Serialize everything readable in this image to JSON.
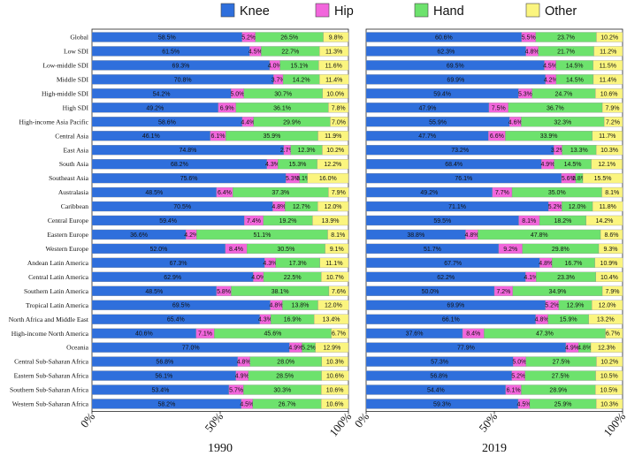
{
  "chart_data": {
    "type": "bar",
    "orientation": "horizontal",
    "stacked": "percent",
    "legend": {
      "placement": "top-center",
      "entries": [
        {
          "name": "Knee",
          "color": "#2f6fdc"
        },
        {
          "name": "Hip",
          "color": "#f266dc"
        },
        {
          "name": "Hand",
          "color": "#6de26d"
        },
        {
          "name": "Other",
          "color": "#fbf57f"
        }
      ]
    },
    "categories": [
      "Global",
      "Low SDI",
      "Low-middle SDI",
      "Middle SDI",
      "High-middle SDI",
      "High SDI",
      "High-income Asia Pacific",
      "Central Asia",
      "East Asia",
      "South Asia",
      "Southeast Asia",
      "Australasia",
      "Caribbean",
      "Central Europe",
      "Eastern Europe",
      "Western Europe",
      "Andean Latin America",
      "Central Latin America",
      "Southern Latin America",
      "Tropical Latin America",
      "North Africa and Middle East",
      "High-income North America",
      "Oceania",
      "Central Sub-Saharan Africa",
      "Eastern Sub-Saharan Africa",
      "Southern Sub-Saharan Africa",
      "Western Sub-Saharan Africa"
    ],
    "xlim": [
      0,
      100
    ],
    "xticks": [
      "0%",
      "50%",
      "100%"
    ],
    "panels": [
      {
        "title": "1990",
        "series": [
          {
            "name": "Knee",
            "values": [
              58.5,
              61.5,
              69.3,
              70.8,
              54.2,
              49.2,
              58.6,
              46.1,
              74.8,
              68.2,
              75.6,
              48.5,
              70.5,
              59.4,
              36.6,
              52.0,
              67.3,
              62.9,
              48.5,
              69.5,
              65.4,
              40.6,
              77.0,
              56.8,
              56.1,
              53.4,
              58.2
            ]
          },
          {
            "name": "Hip",
            "values": [
              5.2,
              4.5,
              4.0,
              3.7,
              5.0,
              6.9,
              4.4,
              6.1,
              2.7,
              4.3,
              5.3,
              6.4,
              4.8,
              7.4,
              4.2,
              8.4,
              4.3,
              4.0,
              5.8,
              4.8,
              4.3,
              7.1,
              4.9,
              4.8,
              4.9,
              5.7,
              4.5
            ]
          },
          {
            "name": "Hand",
            "values": [
              26.5,
              22.7,
              15.1,
              14.2,
              30.7,
              36.1,
              29.9,
              35.9,
              12.3,
              15.3,
              3.1,
              37.3,
              12.7,
              19.2,
              51.1,
              30.5,
              17.3,
              22.5,
              38.1,
              13.8,
              16.9,
              45.6,
              5.2,
              28.0,
              28.5,
              30.3,
              26.7
            ]
          },
          {
            "name": "Other",
            "values": [
              9.8,
              11.3,
              11.6,
              11.4,
              10.0,
              7.8,
              7.0,
              11.9,
              10.2,
              12.2,
              16.0,
              7.9,
              12.0,
              13.9,
              8.1,
              9.1,
              11.1,
              10.7,
              7.6,
              12.0,
              13.4,
              6.7,
              12.9,
              10.3,
              10.6,
              10.6,
              10.6
            ]
          }
        ]
      },
      {
        "title": "2019",
        "series": [
          {
            "name": "Knee",
            "values": [
              60.6,
              62.3,
              69.5,
              69.9,
              59.4,
              47.9,
              55.9,
              47.7,
              73.2,
              68.4,
              76.1,
              49.2,
              71.1,
              59.5,
              38.8,
              51.7,
              67.7,
              62.2,
              50.0,
              69.9,
              66.1,
              37.6,
              77.9,
              57.3,
              56.8,
              54.4,
              59.3
            ]
          },
          {
            "name": "Hip",
            "values": [
              5.5,
              4.8,
              4.5,
              4.2,
              5.3,
              7.5,
              4.6,
              6.6,
              3.2,
              4.9,
              5.6,
              7.7,
              5.2,
              8.1,
              4.8,
              9.2,
              4.8,
              4.1,
              7.2,
              5.2,
              4.8,
              8.4,
              4.9,
              5.0,
              5.2,
              6.1,
              4.5
            ]
          },
          {
            "name": "Hand",
            "values": [
              23.7,
              21.7,
              14.5,
              14.5,
              24.7,
              36.7,
              32.3,
              33.9,
              13.3,
              14.5,
              2.8,
              35.0,
              12.0,
              18.2,
              47.8,
              29.8,
              16.7,
              23.3,
              34.9,
              12.9,
              15.9,
              47.3,
              4.8,
              27.5,
              27.5,
              28.9,
              25.9
            ]
          },
          {
            "name": "Other",
            "values": [
              10.2,
              11.2,
              11.5,
              11.4,
              10.6,
              7.9,
              7.2,
              11.7,
              10.3,
              12.1,
              15.5,
              8.1,
              11.8,
              14.2,
              8.6,
              9.3,
              10.9,
              10.4,
              7.9,
              12.0,
              13.2,
              6.7,
              12.3,
              10.2,
              10.5,
              10.5,
              10.3
            ]
          }
        ]
      }
    ]
  }
}
